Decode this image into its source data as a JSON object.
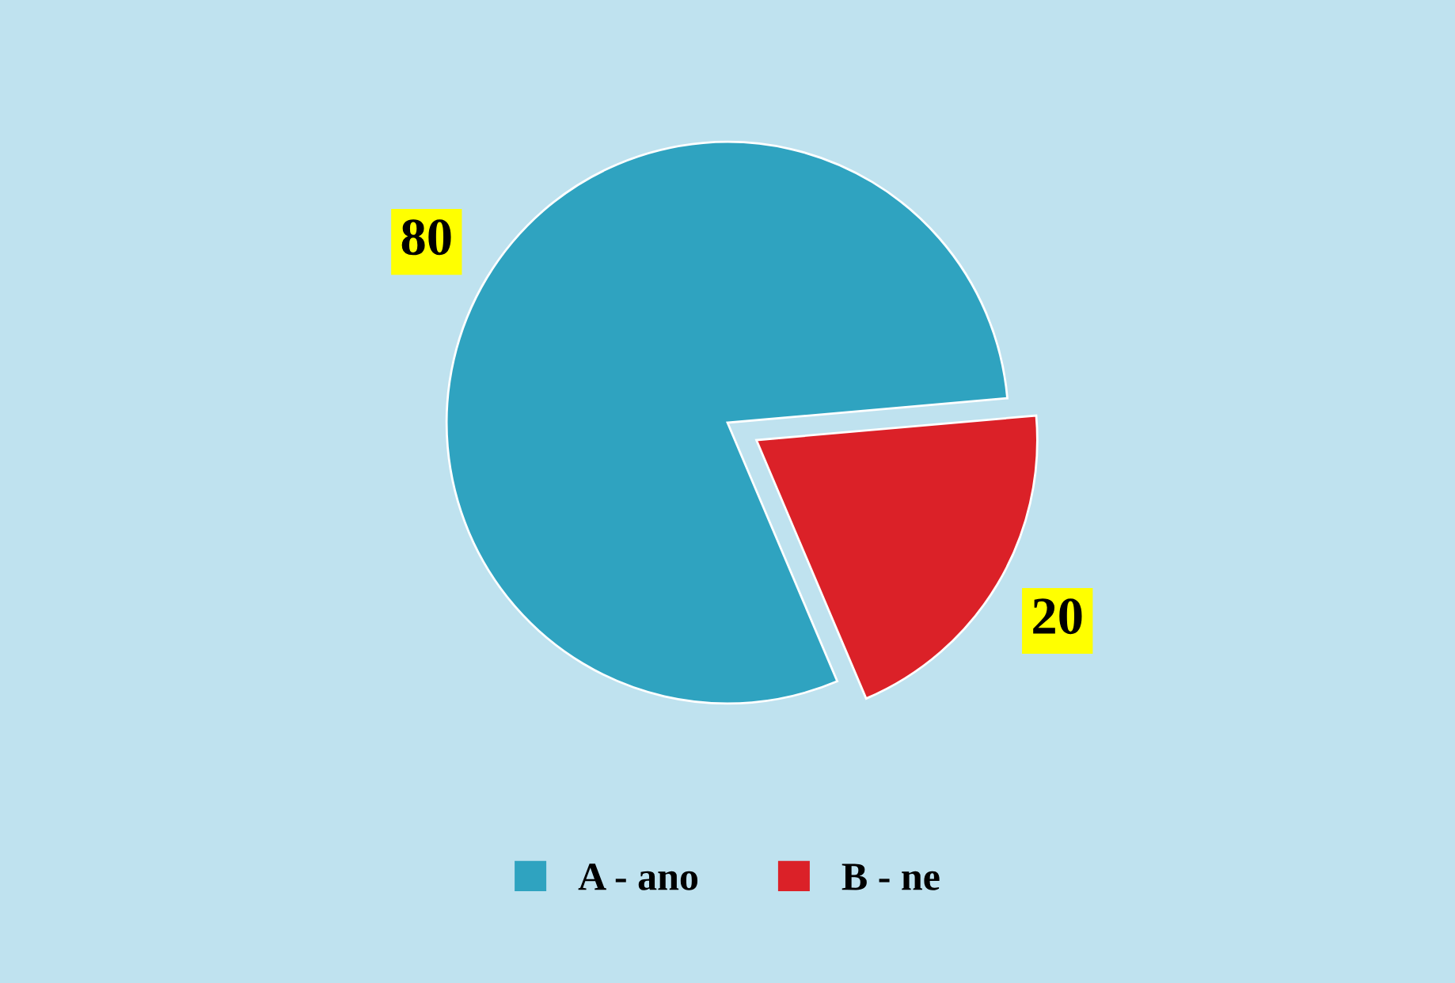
{
  "chart_data": {
    "type": "pie",
    "categories": [
      "A - ano",
      "B - ne"
    ],
    "values": [
      80,
      20
    ],
    "colors": [
      "#2fa3c0",
      "#db2128"
    ],
    "data_labels": true,
    "legend": "bottom"
  }
}
